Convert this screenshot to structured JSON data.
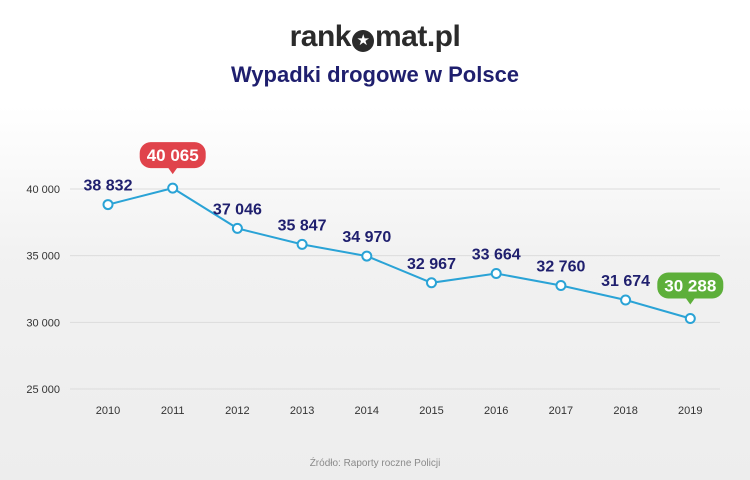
{
  "header": {
    "logo_left": "rank",
    "logo_star": "★",
    "logo_right": "mat.pl",
    "title": "Wypadki drogowe w Polsce"
  },
  "source": "Źródło: Raporty roczne Policji",
  "colors": {
    "line": "#2aa3d6",
    "label": "#1f1f6e",
    "max_badge": "#e0434b",
    "min_badge": "#5daf3a",
    "grid": "#dcdcdc",
    "tick": "#333333"
  },
  "chart_data": {
    "type": "line",
    "title": "Wypadki drogowe w Polsce",
    "xlabel": "",
    "ylabel": "",
    "x": [
      "2010",
      "2011",
      "2012",
      "2013",
      "2014",
      "2015",
      "2016",
      "2017",
      "2018",
      "2019"
    ],
    "series": [
      {
        "values": [
          38832,
          40065,
          37046,
          35847,
          34970,
          32967,
          33664,
          32760,
          31674,
          30288
        ]
      }
    ],
    "data_labels": [
      "38 832",
      "40 065",
      "37 046",
      "35 847",
      "34 970",
      "32 967",
      "33 664",
      "32 760",
      "31 674",
      "30 288"
    ],
    "highlight": {
      "max_index": 1,
      "min_index": 9
    },
    "ylim": [
      25000,
      40000
    ],
    "yticks": [
      25000,
      30000,
      35000,
      40000
    ],
    "ytick_labels": [
      "25 000",
      "30 000",
      "35 000",
      "40 000"
    ],
    "grid": true,
    "legend": "none"
  }
}
